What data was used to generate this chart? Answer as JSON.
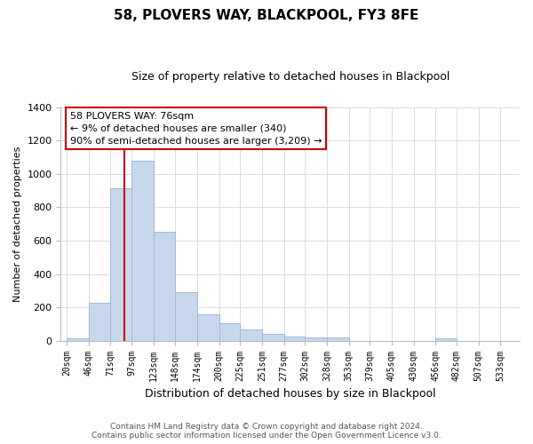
{
  "title": "58, PLOVERS WAY, BLACKPOOL, FY3 8FE",
  "subtitle": "Size of property relative to detached houses in Blackpool",
  "xlabel": "Distribution of detached houses by size in Blackpool",
  "ylabel": "Number of detached properties",
  "bar_color": "#c8d8ec",
  "bar_edge_color": "#a0b8d8",
  "vline_color": "#cc0000",
  "vline_x_data": 76,
  "bar_heights": [
    15,
    228,
    916,
    1079,
    654,
    291,
    158,
    107,
    70,
    40,
    25,
    18,
    18,
    0,
    0,
    0,
    0,
    15,
    0,
    0
  ],
  "tick_labels": [
    "20sqm",
    "46sqm",
    "71sqm",
    "97sqm",
    "123sqm",
    "148sqm",
    "174sqm",
    "200sqm",
    "225sqm",
    "251sqm",
    "277sqm",
    "302sqm",
    "328sqm",
    "353sqm",
    "379sqm",
    "405sqm",
    "430sqm",
    "456sqm",
    "482sqm",
    "507sqm",
    "533sqm"
  ],
  "bin_edges": [
    7,
    33,
    59,
    84,
    110,
    136,
    162,
    188,
    213,
    239,
    265,
    290,
    316,
    342,
    367,
    393,
    419,
    445,
    470,
    496,
    522
  ],
  "ylim": [
    0,
    1400
  ],
  "xlim": [
    0,
    545
  ],
  "annotation_title": "58 PLOVERS WAY: 76sqm",
  "annotation_line1": "← 9% of detached houses are smaller (340)",
  "annotation_line2": "90% of semi-detached houses are larger (3,209) →",
  "annotation_box_color": "#ffffff",
  "annotation_box_edge": "#cc0000",
  "footer_line1": "Contains HM Land Registry data © Crown copyright and database right 2024.",
  "footer_line2": "Contains public sector information licensed under the Open Government Licence v3.0.",
  "background_color": "#ffffff",
  "grid_color": "#dddddd",
  "yticks": [
    0,
    200,
    400,
    600,
    800,
    1000,
    1200,
    1400
  ]
}
